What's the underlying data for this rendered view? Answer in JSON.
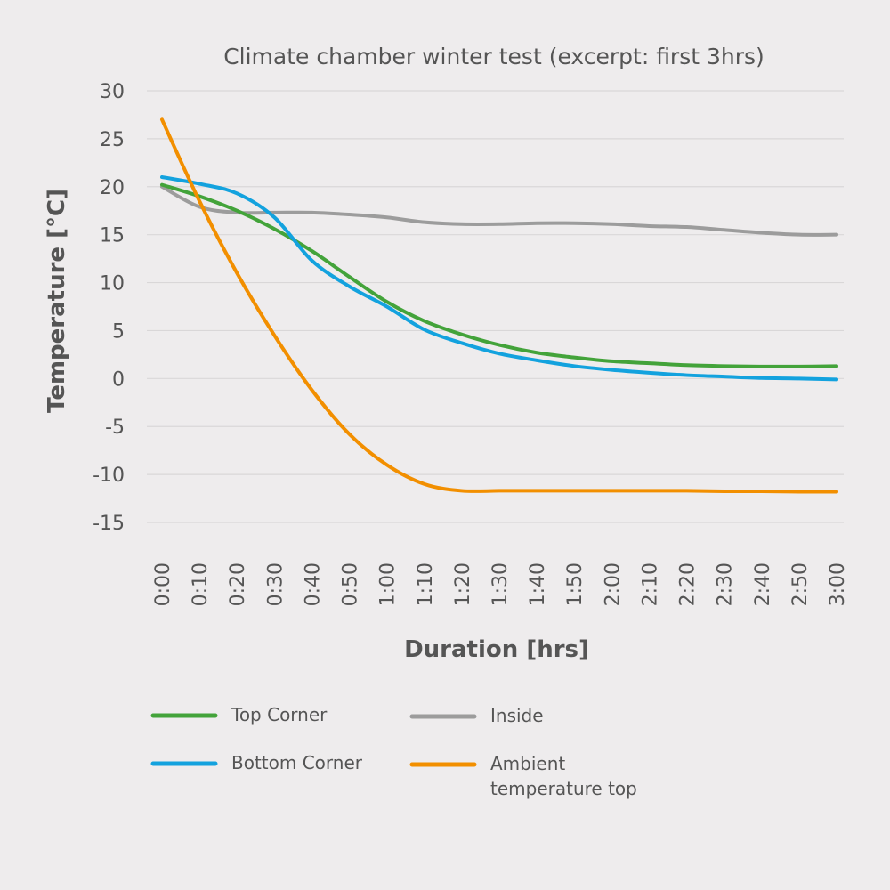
{
  "chart_data": {
    "type": "line",
    "title": "Climate chamber winter test (excerpt: first 3hrs)",
    "xlabel": "Duration [hrs]",
    "ylabel": "Temperature [°C]",
    "ylim": [
      -15,
      30
    ],
    "yticks": [
      30,
      25,
      20,
      15,
      10,
      5,
      0,
      -5,
      -10,
      -15
    ],
    "ytick_labels": [
      "30",
      "25",
      "20",
      "15",
      "10",
      "5",
      "0",
      "-5",
      "-10",
      "-15"
    ],
    "x": [
      "0:00",
      "0:10",
      "0:20",
      "0:30",
      "0:40",
      "0:50",
      "1:00",
      "1:10",
      "1:20",
      "1:30",
      "1:40",
      "1:50",
      "2:00",
      "2:10",
      "2:20",
      "2:30",
      "2:40",
      "2:50",
      "3:00"
    ],
    "grid": true,
    "legend_position": "bottom",
    "series": [
      {
        "name": "Top Corner",
        "color": "#43a33a",
        "values": [
          20.2,
          19.0,
          17.5,
          15.6,
          13.3,
          10.6,
          8.0,
          6.0,
          4.6,
          3.5,
          2.7,
          2.2,
          1.8,
          1.6,
          1.4,
          1.3,
          1.25,
          1.25,
          1.3
        ]
      },
      {
        "name": "Inside",
        "color": "#9c9c9c",
        "values": [
          20.0,
          17.9,
          17.3,
          17.3,
          17.3,
          17.1,
          16.8,
          16.3,
          16.1,
          16.1,
          16.2,
          16.2,
          16.1,
          15.9,
          15.8,
          15.5,
          15.2,
          15.0,
          15.0
        ]
      },
      {
        "name": "Bottom Corner",
        "color": "#13a2de",
        "values": [
          21.0,
          20.3,
          19.3,
          16.8,
          12.3,
          9.6,
          7.5,
          5.1,
          3.7,
          2.6,
          1.9,
          1.3,
          0.9,
          0.6,
          0.35,
          0.2,
          0.05,
          0.0,
          -0.1
        ]
      },
      {
        "name": "Ambient\ntemperature top",
        "color": "#f28f00",
        "values": [
          27.0,
          18.5,
          11.0,
          4.5,
          -1.2,
          -5.8,
          -9.0,
          -11.0,
          -11.7,
          -11.7,
          -11.7,
          -11.7,
          -11.7,
          -11.7,
          -11.7,
          -11.75,
          -11.75,
          -11.8,
          -11.8
        ]
      }
    ]
  }
}
